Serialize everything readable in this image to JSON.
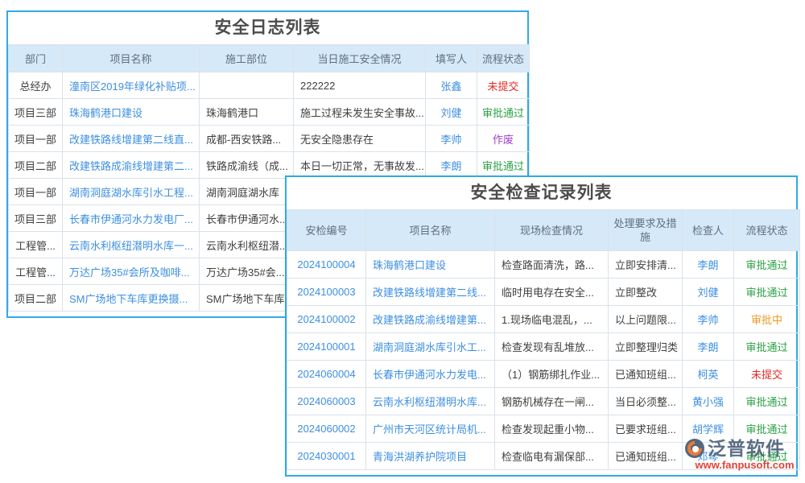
{
  "colors": {
    "border": "#31a9e9",
    "header_bg": "#d6e9f8",
    "header_text": "#5d7081",
    "body_text": "#3f3f3f",
    "title_text": "#4c4c4c",
    "link": "#3d8fe0",
    "red": "#e12b25",
    "green": "#2ba245",
    "orange": "#f09a1f",
    "purple": "#a03fd0",
    "brand": "#54677e",
    "brand_url": "#e0382e"
  },
  "log_table": {
    "title": "安全日志列表",
    "columns": [
      "部门",
      "项目名称",
      "施工部位",
      "当日施工安全情况",
      "填写人",
      "流程状态"
    ],
    "rows": [
      {
        "cells": [
          {
            "text": "总经办",
            "type": "plain"
          },
          {
            "text": "潼南区2019年绿化补贴项...",
            "type": "link"
          },
          {
            "text": "",
            "type": "plain"
          },
          {
            "text": "222222",
            "type": "plain"
          },
          {
            "text": "张鑫",
            "type": "link"
          },
          {
            "text": "未提交",
            "type": "status",
            "color": "red"
          }
        ]
      },
      {
        "cells": [
          {
            "text": "项目三部",
            "type": "plain"
          },
          {
            "text": "珠海鹤港口建设",
            "type": "link"
          },
          {
            "text": "珠海鹤港口",
            "type": "plain"
          },
          {
            "text": "施工过程未发生安全事故...",
            "type": "plain"
          },
          {
            "text": "刘健",
            "type": "link"
          },
          {
            "text": "审批通过",
            "type": "status",
            "color": "green"
          }
        ]
      },
      {
        "cells": [
          {
            "text": "项目一部",
            "type": "plain"
          },
          {
            "text": "改建铁路线增建第二线直...",
            "type": "link"
          },
          {
            "text": "成都-西安铁路...",
            "type": "plain"
          },
          {
            "text": "无安全隐患存在",
            "type": "plain"
          },
          {
            "text": "李帅",
            "type": "link"
          },
          {
            "text": "作废",
            "type": "status",
            "color": "purple"
          }
        ]
      },
      {
        "cells": [
          {
            "text": "项目二部",
            "type": "plain"
          },
          {
            "text": "改建铁路成渝线增建第二...",
            "type": "link"
          },
          {
            "text": "铁路成渝线（成...",
            "type": "plain"
          },
          {
            "text": "本日一切正常，无事故发...",
            "type": "plain"
          },
          {
            "text": "李朗",
            "type": "link"
          },
          {
            "text": "审批通过",
            "type": "status",
            "color": "green"
          }
        ]
      },
      {
        "cells": [
          {
            "text": "项目一部",
            "type": "plain"
          },
          {
            "text": "湖南洞庭湖水库引水工程...",
            "type": "link"
          },
          {
            "text": "湖南洞庭湖水库",
            "type": "plain"
          },
          {
            "text": "",
            "type": "plain"
          },
          {
            "text": "",
            "type": "plain"
          },
          {
            "text": "",
            "type": "plain"
          }
        ]
      },
      {
        "cells": [
          {
            "text": "项目三部",
            "type": "plain"
          },
          {
            "text": "长春市伊通河水力发电厂...",
            "type": "link"
          },
          {
            "text": "长春市伊通河水...",
            "type": "plain"
          },
          {
            "text": "",
            "type": "plain"
          },
          {
            "text": "",
            "type": "plain"
          },
          {
            "text": "",
            "type": "plain"
          }
        ]
      },
      {
        "cells": [
          {
            "text": "工程管...",
            "type": "plain"
          },
          {
            "text": "云南水利枢纽潜明水库一...",
            "type": "link"
          },
          {
            "text": "云南水利枢纽潜...",
            "type": "plain"
          },
          {
            "text": "",
            "type": "plain"
          },
          {
            "text": "",
            "type": "plain"
          },
          {
            "text": "",
            "type": "plain"
          }
        ]
      },
      {
        "cells": [
          {
            "text": "工程管...",
            "type": "plain"
          },
          {
            "text": "万达广场35#会所及咖啡...",
            "type": "link"
          },
          {
            "text": "万达广场35#会...",
            "type": "plain"
          },
          {
            "text": "",
            "type": "plain"
          },
          {
            "text": "",
            "type": "plain"
          },
          {
            "text": "",
            "type": "plain"
          }
        ]
      },
      {
        "cells": [
          {
            "text": "项目二部",
            "type": "plain"
          },
          {
            "text": "SM广场地下车库更换摄...",
            "type": "link"
          },
          {
            "text": "SM广场地下车库",
            "type": "plain"
          },
          {
            "text": "",
            "type": "plain"
          },
          {
            "text": "",
            "type": "plain"
          },
          {
            "text": "",
            "type": "plain"
          }
        ]
      }
    ]
  },
  "inspection_table": {
    "title": "安全检查记录列表",
    "columns": [
      "安检编号",
      "项目名称",
      "现场检查情况",
      "处理要求及措施",
      "检查人",
      "流程状态"
    ],
    "rows": [
      {
        "cells": [
          {
            "text": "2024100004",
            "type": "link"
          },
          {
            "text": "珠海鹤港口建设",
            "type": "link"
          },
          {
            "text": "检查路面清洗，路...",
            "type": "plain"
          },
          {
            "text": "立即安排清...",
            "type": "plain"
          },
          {
            "text": "李朗",
            "type": "link"
          },
          {
            "text": "审批通过",
            "type": "status",
            "color": "green"
          }
        ]
      },
      {
        "cells": [
          {
            "text": "2024100003",
            "type": "link"
          },
          {
            "text": "改建铁路线增建第二线...",
            "type": "link"
          },
          {
            "text": "临时用电存在安全...",
            "type": "plain"
          },
          {
            "text": "立即整改",
            "type": "plain"
          },
          {
            "text": "刘健",
            "type": "link"
          },
          {
            "text": "审批通过",
            "type": "status",
            "color": "green"
          }
        ]
      },
      {
        "cells": [
          {
            "text": "2024100002",
            "type": "link"
          },
          {
            "text": "改建铁路成渝线增建第...",
            "type": "link"
          },
          {
            "text": "1.现场临电混乱，...",
            "type": "plain"
          },
          {
            "text": "以上问题限...",
            "type": "plain"
          },
          {
            "text": "李帅",
            "type": "link"
          },
          {
            "text": "审批中",
            "type": "status",
            "color": "orange"
          }
        ]
      },
      {
        "cells": [
          {
            "text": "2024100001",
            "type": "link"
          },
          {
            "text": "湖南洞庭湖水库引水工...",
            "type": "link"
          },
          {
            "text": "检查发现有乱堆放...",
            "type": "plain"
          },
          {
            "text": "立即整理归类",
            "type": "plain"
          },
          {
            "text": "李朗",
            "type": "link"
          },
          {
            "text": "审批通过",
            "type": "status",
            "color": "green"
          }
        ]
      },
      {
        "cells": [
          {
            "text": "2024060004",
            "type": "link"
          },
          {
            "text": "长春市伊通河水力发电...",
            "type": "link"
          },
          {
            "text": "（1）钢筋绑扎作业...",
            "type": "plain"
          },
          {
            "text": "已通知班组...",
            "type": "plain"
          },
          {
            "text": "柯英",
            "type": "link"
          },
          {
            "text": "未提交",
            "type": "status",
            "color": "red"
          }
        ]
      },
      {
        "cells": [
          {
            "text": "2024060003",
            "type": "link"
          },
          {
            "text": "云南水利枢纽潜明水库...",
            "type": "link"
          },
          {
            "text": "钢筋机械存在一闸...",
            "type": "plain"
          },
          {
            "text": "当日必须整...",
            "type": "plain"
          },
          {
            "text": "黄小强",
            "type": "link"
          },
          {
            "text": "审批通过",
            "type": "status",
            "color": "green"
          }
        ]
      },
      {
        "cells": [
          {
            "text": "2024060002",
            "type": "link"
          },
          {
            "text": "广州市天河区统计局机...",
            "type": "link"
          },
          {
            "text": "检查发现起重小物...",
            "type": "plain"
          },
          {
            "text": "已要求班组...",
            "type": "plain"
          },
          {
            "text": "胡学辉",
            "type": "link"
          },
          {
            "text": "审批通过",
            "type": "status",
            "color": "green"
          }
        ]
      },
      {
        "cells": [
          {
            "text": "2024030001",
            "type": "link"
          },
          {
            "text": "青海洪湖养护院项目",
            "type": "link"
          },
          {
            "text": "检查临电有漏保部...",
            "type": "plain"
          },
          {
            "text": "已通知班组...",
            "type": "plain"
          },
          {
            "text": "邓琴",
            "type": "link"
          },
          {
            "text": "审批通过",
            "type": "status",
            "color": "green"
          }
        ]
      }
    ]
  },
  "watermark": {
    "brand": "泛普软件",
    "url": "www.fanpusoft.com"
  }
}
